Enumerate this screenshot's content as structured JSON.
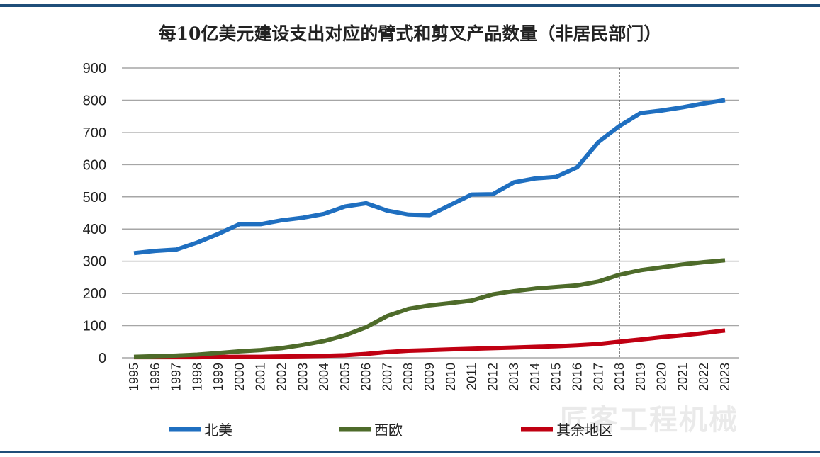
{
  "chart_data": {
    "type": "line",
    "title": "每10亿美元建设支出对应的臂式和剪叉产品数量（非居民部门）",
    "xlabel": "",
    "ylabel": "",
    "ylim": [
      0,
      900
    ],
    "yticks": [
      0,
      100,
      200,
      300,
      400,
      500,
      600,
      700,
      800,
      900
    ],
    "grid": true,
    "legend_position": "bottom",
    "vertical_marker_x": 2018,
    "x": [
      1995,
      1996,
      1997,
      1998,
      1999,
      2000,
      2001,
      2002,
      2003,
      2004,
      2005,
      2006,
      2007,
      2008,
      2009,
      2010,
      2011,
      2012,
      2013,
      2014,
      2015,
      2016,
      2017,
      2018,
      2019,
      2020,
      2021,
      2022,
      2023
    ],
    "series": [
      {
        "name": "北美",
        "color": "#1f6fc0",
        "values": [
          325,
          332,
          336,
          358,
          385,
          415,
          415,
          427,
          435,
          447,
          470,
          480,
          457,
          445,
          443,
          475,
          507,
          508,
          545,
          557,
          562,
          592,
          670,
          720,
          760,
          768,
          778,
          790,
          800
        ]
      },
      {
        "name": "西欧",
        "color": "#4e6b2a",
        "values": [
          3,
          5,
          7,
          10,
          15,
          20,
          24,
          30,
          40,
          52,
          70,
          95,
          130,
          152,
          163,
          170,
          178,
          197,
          207,
          215,
          220,
          225,
          237,
          258,
          272,
          281,
          290,
          297,
          303
        ]
      },
      {
        "name": "其余地区",
        "color": "#c00012",
        "values": [
          2,
          2,
          2,
          2,
          3,
          3,
          3,
          4,
          5,
          6,
          8,
          12,
          18,
          22,
          24,
          26,
          28,
          30,
          32,
          34,
          36,
          39,
          43,
          50,
          57,
          64,
          70,
          77,
          85
        ]
      }
    ]
  },
  "watermark": "匠客工程机械",
  "colors": {
    "frame": "#1f4e79",
    "grid": "#a6a6a6"
  }
}
